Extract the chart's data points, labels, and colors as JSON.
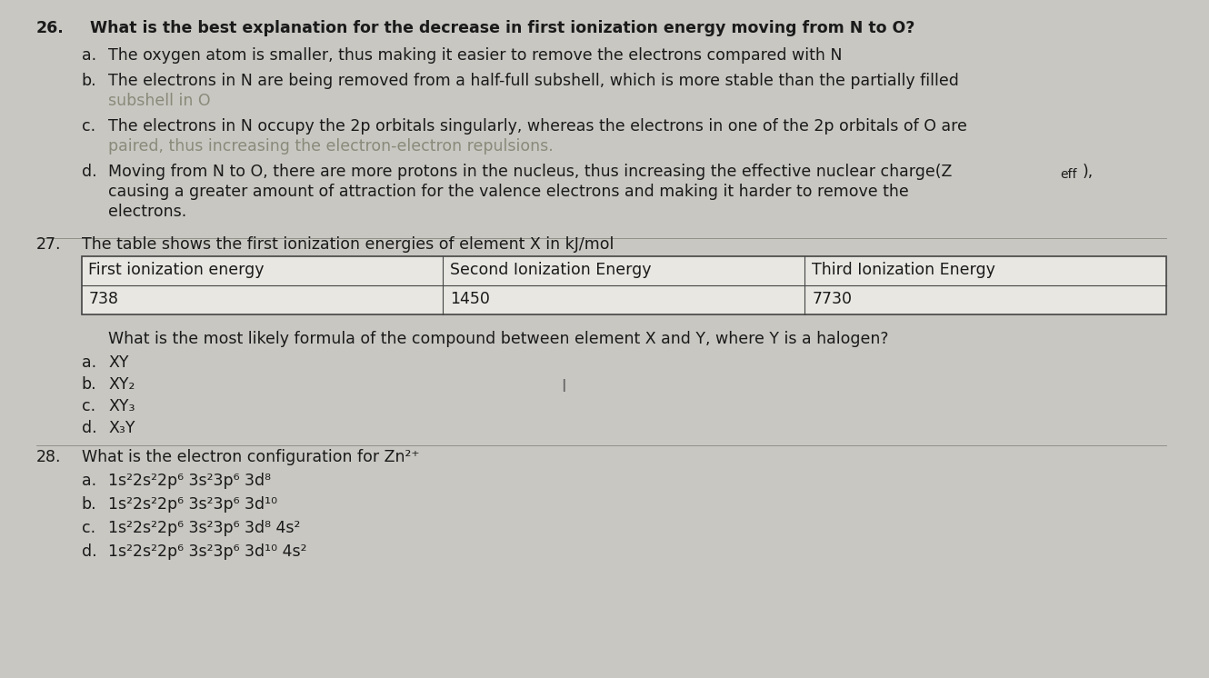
{
  "bg_color": "#c8c7c2",
  "content_bg": "#e0dfd9",
  "text_color": "#1a1a1a",
  "faded_color": "#8a8a7a",
  "font_size": 12.5,
  "q26_num": "26.",
  "q26_q": "What is the best explanation for the decrease in first ionization energy moving from N to O?",
  "q26_a": "The oxygen atom is smaller, thus making it easier to remove the electrons compared with N",
  "q26_b1": "The electrons in N are being removed from a half-full subshell, which is more stable than the partially filled",
  "q26_b2": "subshell in O",
  "q26_c1": "The electrons in N occupy the 2p orbitals singularly, whereas the electrons in one of the 2p orbitals of O are",
  "q26_c2": "paired, thus increasing the electron-electron repulsions.",
  "q26_d1": "Moving from N to O, there are more protons in the nucleus, thus increasing the effective nuclear charge(Z",
  "q26_d_sub": "eff",
  "q26_d_tail": "),",
  "q26_d2": "causing a greater amount of attraction for the valence electrons and making it harder to remove the",
  "q26_d3": "electrons.",
  "q27_num": "27.",
  "q27_intro": "The table shows the first ionization energies of element X in kJ/mol",
  "table_h1": "First ionization energy",
  "table_h2": "Second Ionization Energy",
  "table_h3": "Third Ionization Energy",
  "table_v1": "738",
  "table_v2": "1450",
  "table_v3": "7730",
  "q27_sub": "What is the most likely formula of the compound between element X and Y, where Y is a halogen?",
  "q27_a": "XY",
  "q27_b": "XY₂",
  "q27_c": "XY₃",
  "q27_d": "X₃Y",
  "q28_num": "28.",
  "q28_q": "What is the electron configuration for Zn²⁺",
  "q28_a": "1s²2s²2p⁶ 3s²3p⁶ 3d⁸",
  "q28_b": "1s²2s²2p⁶ 3s²3p⁶ 3d¹⁰",
  "q28_c": "1s²2s²2p⁶ 3s²3p⁶ 3d⁸ 4s²",
  "q28_d": "1s²2s²2p⁶ 3s²3p⁶ 3d¹⁰ 4s²"
}
